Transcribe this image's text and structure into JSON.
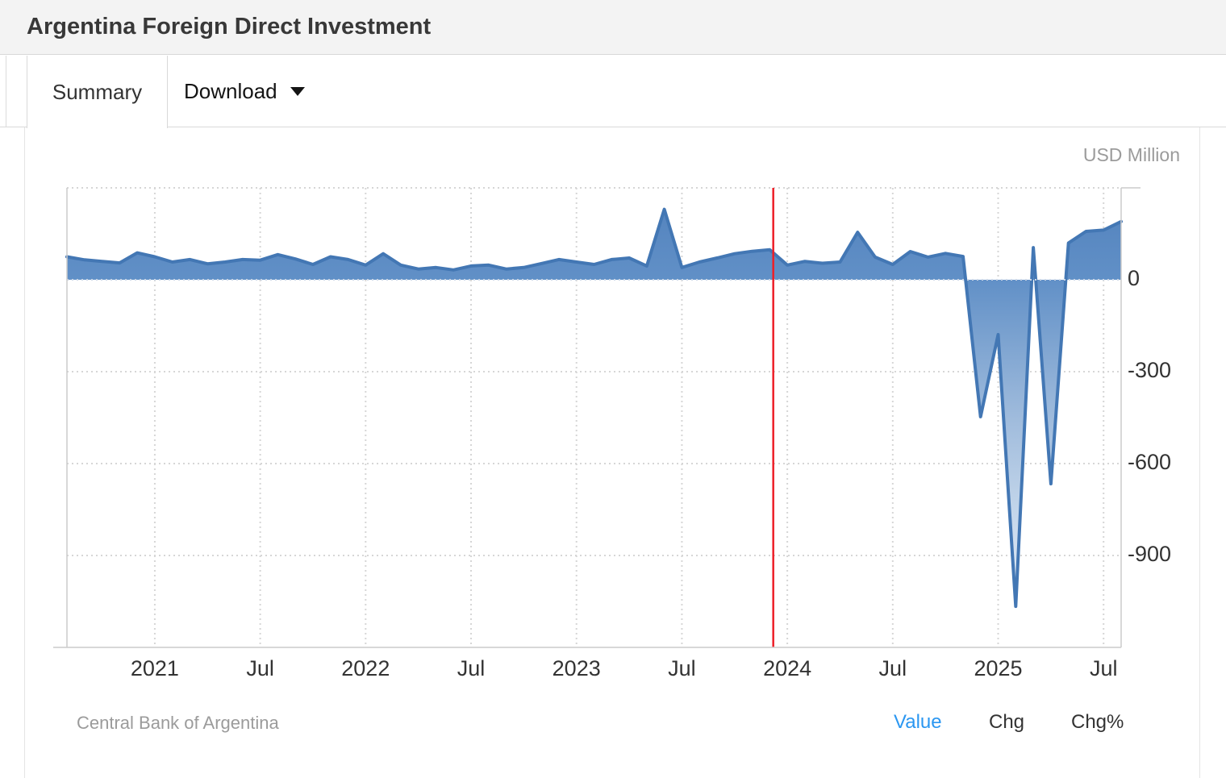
{
  "header": {
    "title": "Argentina Foreign Direct Investment"
  },
  "tabs": {
    "summary": "Summary",
    "download": "Download"
  },
  "chart_data": {
    "type": "area",
    "title": "Argentina Foreign Direct Investment",
    "unit_label": "USD Million",
    "x_start": "2020-08",
    "x_frequency": "monthly",
    "values": [
      75,
      65,
      60,
      55,
      88,
      75,
      58,
      66,
      52,
      58,
      66,
      64,
      82,
      68,
      50,
      75,
      66,
      48,
      85,
      48,
      35,
      40,
      32,
      45,
      48,
      35,
      40,
      53,
      66,
      58,
      50,
      66,
      71,
      45,
      230,
      40,
      58,
      71,
      85,
      93,
      98,
      48,
      60,
      54,
      58,
      155,
      74,
      50,
      92,
      74,
      86,
      76,
      -447,
      -179,
      -1066,
      105,
      -666,
      120,
      158,
      162,
      190
    ],
    "x_tick_labels": [
      {
        "month_index": 5,
        "label": "2021"
      },
      {
        "month_index": 11,
        "label": "Jul"
      },
      {
        "month_index": 17,
        "label": "2022"
      },
      {
        "month_index": 23,
        "label": "Jul"
      },
      {
        "month_index": 29,
        "label": "2023"
      },
      {
        "month_index": 35,
        "label": "Jul"
      },
      {
        "month_index": 41,
        "label": "2024"
      },
      {
        "month_index": 47,
        "label": "Jul"
      },
      {
        "month_index": 53,
        "label": "2025"
      },
      {
        "month_index": 59,
        "label": "Jul"
      }
    ],
    "y_ticks": [
      {
        "value": 0,
        "label": "0"
      },
      {
        "value": -300,
        "label": "-300"
      },
      {
        "value": -600,
        "label": "-600"
      },
      {
        "value": -900,
        "label": "-900"
      }
    ],
    "y_axis_range": [
      -1200,
      300
    ],
    "y_gridline_values": [
      300,
      -300,
      -600,
      -900
    ],
    "grid": "dotted",
    "legend": "none",
    "marker_line": {
      "month_index": 40.2,
      "color": "#ed1f28"
    },
    "colors": {
      "line": "#4377b4",
      "fill_top": "#5181bc",
      "fill_bottom": "#f2f7fc",
      "grid": "#d6d6d6",
      "border": "#cccccc",
      "zero_overlay": "#ccd7e6"
    }
  },
  "footer": {
    "source": "Central Bank of Argentina",
    "links": [
      {
        "label": "Value",
        "active": true
      },
      {
        "label": "Chg",
        "active": false
      },
      {
        "label": "Chg%",
        "active": false
      }
    ]
  }
}
